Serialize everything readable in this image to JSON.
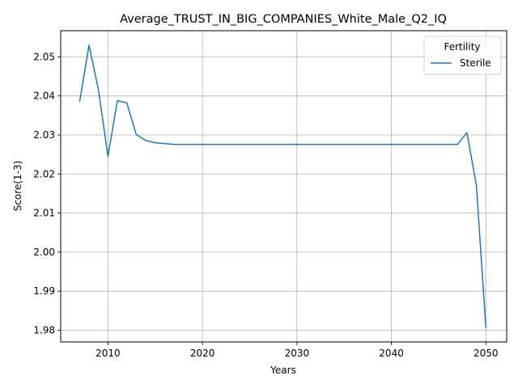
{
  "chart_data": {
    "type": "line",
    "title": "Average_TRUST_IN_BIG_COMPANIES_White_Male_Q2_IQ",
    "xlabel": "Years",
    "ylabel": "Score(1-3)",
    "xlim": [
      2005,
      2052.2
    ],
    "ylim": [
      1.977,
      2.0567
    ],
    "x_ticks": [
      2010,
      2020,
      2030,
      2040,
      2050
    ],
    "y_ticks": [
      1.98,
      1.99,
      2.0,
      2.01,
      2.02,
      2.03,
      2.04,
      2.05
    ],
    "y_tick_labels": [
      "1.98",
      "1.99",
      "2.00",
      "2.01",
      "2.02",
      "2.03",
      "2.04",
      "2.05"
    ],
    "grid": true,
    "legend": {
      "title": "Fertility",
      "placement": "top-right"
    },
    "series": [
      {
        "name": "Sterile",
        "color": "#1f77b4",
        "x": [
          2007,
          2008,
          2009,
          2010,
          2011,
          2012,
          2013,
          2014,
          2015,
          2016,
          2017,
          2018,
          2019,
          2020,
          2021,
          2022,
          2023,
          2024,
          2025,
          2026,
          2027,
          2028,
          2029,
          2030,
          2031,
          2032,
          2033,
          2034,
          2035,
          2036,
          2037,
          2038,
          2039,
          2040,
          2041,
          2042,
          2043,
          2044,
          2045,
          2046,
          2047,
          2048,
          2049,
          2050
        ],
        "y": [
          2.0385,
          2.053,
          2.0415,
          2.0245,
          2.0388,
          2.0382,
          2.0301,
          2.0286,
          2.028,
          2.0278,
          2.0276,
          2.0276,
          2.0276,
          2.0276,
          2.0276,
          2.0276,
          2.0276,
          2.0276,
          2.0276,
          2.0276,
          2.0276,
          2.0276,
          2.0276,
          2.0276,
          2.0276,
          2.0276,
          2.0276,
          2.0276,
          2.0276,
          2.0276,
          2.0276,
          2.0276,
          2.0276,
          2.0276,
          2.0276,
          2.0276,
          2.0276,
          2.0276,
          2.0276,
          2.0276,
          2.0276,
          2.0306,
          2.017,
          1.9806
        ]
      }
    ]
  }
}
